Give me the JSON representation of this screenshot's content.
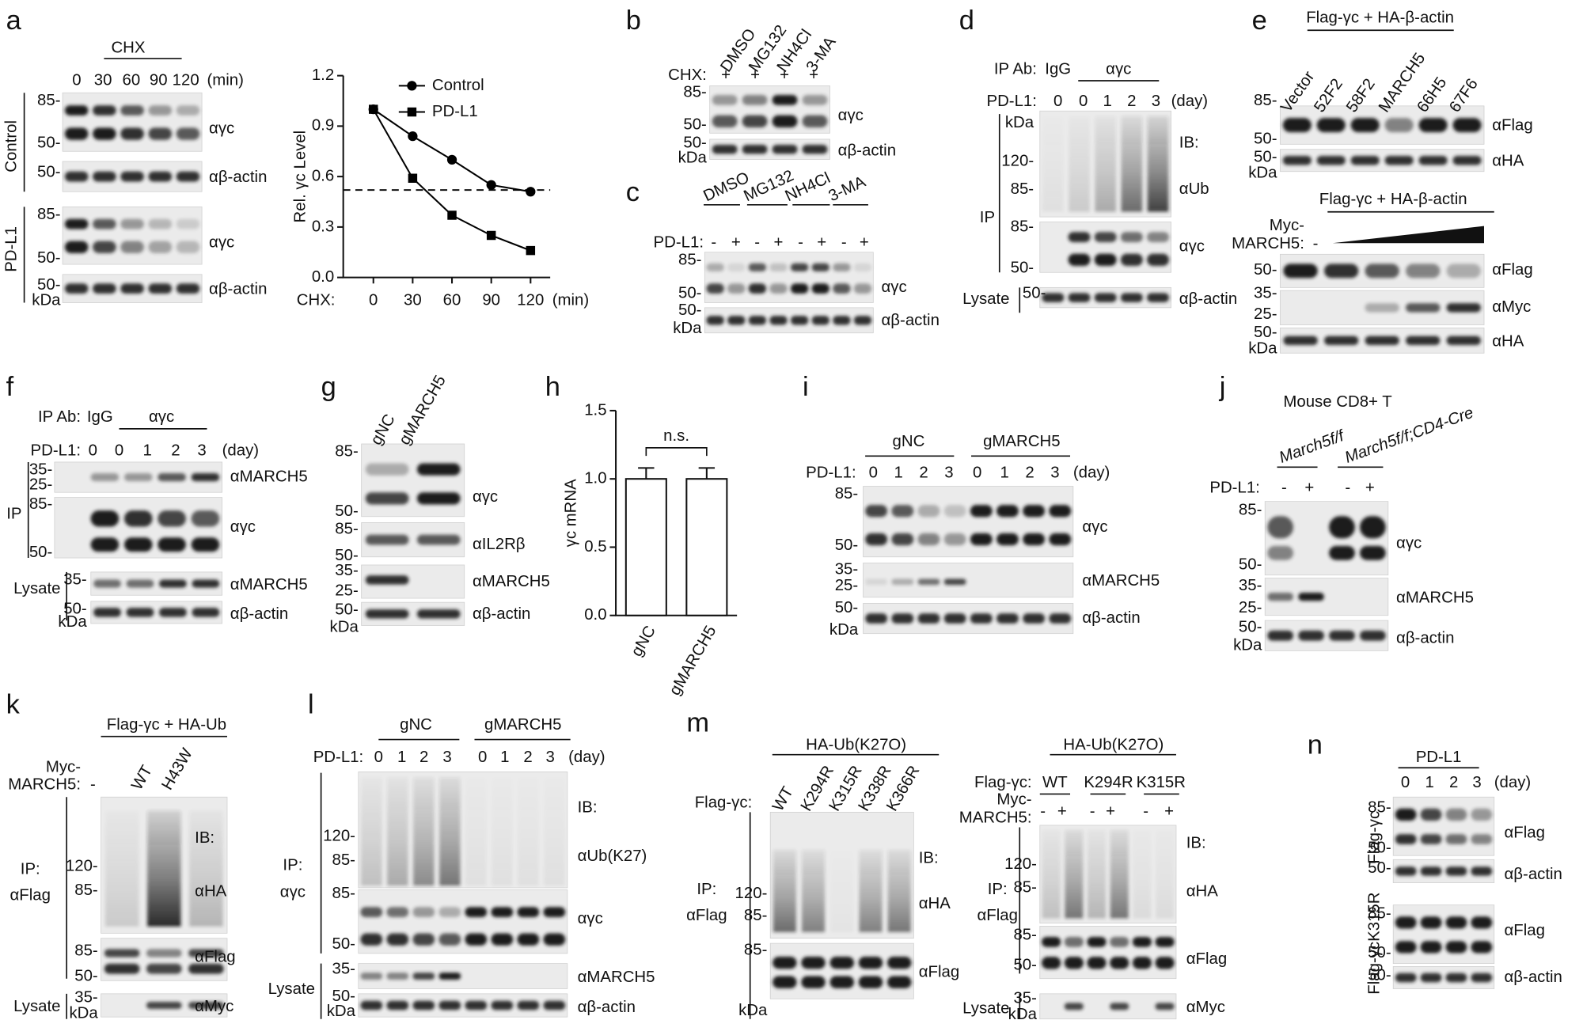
{
  "chart_data": [
    {
      "type": "line",
      "ylabel": "Rel. γc Level",
      "xlabel": "CHX:",
      "x_unit": "(min)",
      "x": [
        0,
        30,
        60,
        90,
        120
      ],
      "xlim": [
        -23,
        135
      ],
      "xticks": [
        0,
        30,
        60,
        90,
        120
      ],
      "ylim": [
        0,
        1.2
      ],
      "yticks": [
        {
          "value": 0,
          "label": "0.0"
        },
        0.3,
        0.6,
        0.9,
        1.2
      ],
      "reference_line": 0.52,
      "legend": "upper right",
      "series": [
        {
          "name": "Control",
          "color": "#000000",
          "marker": "circle",
          "values": [
            1,
            0.84,
            0.7,
            0.55,
            0.51
          ]
        },
        {
          "name": "PD-L1",
          "color": "#000000",
          "marker": "square",
          "values": [
            1,
            0.59,
            0.37,
            0.25,
            0.16
          ]
        }
      ]
    },
    {
      "type": "bar",
      "ylabel": "γc mRNA",
      "categories": [
        "gNC",
        "gMARCH5"
      ],
      "values": [
        1,
        1
      ],
      "errors": [
        0.08,
        0.08
      ],
      "annotation": "n.s.",
      "color": "#ffffff",
      "ylim": [
        0,
        1.5
      ],
      "yticks": [
        {
          "value": 0,
          "label": "0.0"
        },
        0.5,
        {
          "value": 1,
          "label": "1.0"
        },
        1.5
      ]
    }
  ],
  "panels": {
    "a": [
      "a",
      "CHX",
      "0",
      "30",
      "60",
      "90",
      "120",
      "(min)",
      "Control",
      "85-",
      "50-",
      "50-",
      "αγc",
      "αβ-actin",
      "PD-L1",
      "85-",
      "50-",
      "50-",
      "kDa",
      "αγc",
      "αβ-actin"
    ],
    "b": [
      "b",
      "DMSO",
      "MG132",
      "NH4Cl",
      "3-MA",
      "CHX:",
      "+",
      "+",
      "+",
      "+",
      "85-",
      "50-",
      "50-",
      "kDa",
      "αγc",
      "αβ-actin"
    ],
    "c": [
      "c",
      "DMSO",
      "MG132",
      "NH4Cl",
      "3-MA",
      "PD-L1:",
      "-",
      "+",
      "-",
      "+",
      "-",
      "+",
      "-",
      "+",
      "85-",
      "50-",
      "50-",
      "kDa",
      "αγc",
      "αβ-actin"
    ],
    "d": [
      "d",
      "IP Ab:",
      "IgG",
      "αγc",
      "PD-L1:",
      "0",
      "0",
      "1",
      "2",
      "3",
      "(day)",
      "kDa",
      "120-",
      "85-",
      "85-",
      "50-",
      "IP",
      "IB:",
      "αUb",
      "αγc",
      "Lysate",
      "50-",
      "αβ-actin"
    ],
    "e": [
      "e",
      "Flag-γc + HA-β-actin",
      "Vector",
      "52F2",
      "58F2",
      "MARCH5",
      "66H5",
      "67F6",
      "85-",
      "50-",
      "50-",
      "kDa",
      "αFlag",
      "αHA",
      "Flag-γc + HA-β-actin",
      "Myc-",
      "MARCH5:",
      "-",
      "50-",
      "35-",
      "25-",
      "50-",
      "kDa",
      "αFlag",
      "αMyc",
      "αHA"
    ],
    "f": [
      "f",
      "IP Ab:",
      "IgG",
      "αγc",
      "PD-L1:",
      "0",
      "0",
      "1",
      "2",
      "3",
      "(day)",
      "35-",
      "25-",
      "85-",
      "50-",
      "IP",
      "αMARCH5",
      "αγc",
      "Lysate",
      "35-",
      "50-",
      "kDa",
      "αMARCH5",
      "αβ-actin"
    ],
    "g": [
      "g",
      "gNC",
      "gMARCH5",
      "85-",
      "50-",
      "85-",
      "50-",
      "35-",
      "25-",
      "50-",
      "kDa",
      "αγc",
      "αIL2Rβ",
      "αMARCH5",
      "αβ-actin"
    ],
    "h": [
      "h"
    ],
    "i": [
      "i",
      "gNC",
      "gMARCH5",
      "PD-L1:",
      "0",
      "1",
      "2",
      "3",
      "0",
      "1",
      "2",
      "3",
      "(day)",
      "85-",
      "50-",
      "35-",
      "25-",
      "50-",
      "kDa",
      "αγc",
      "αMARCH5",
      "αβ-actin"
    ],
    "j": [
      "j",
      "Mouse CD8+ T",
      "March5f/f",
      "March5f/f;CD4-Cre",
      "PD-L1:",
      "-",
      "+",
      "-",
      "+",
      "85-",
      "50-",
      "35-",
      "25-",
      "50-",
      "kDa",
      "αγc",
      "αMARCH5",
      "αβ-actin"
    ],
    "k": [
      "k",
      "Flag-γc + HA-Ub",
      "Myc-",
      "MARCH5:",
      "-",
      "WT",
      "H43W",
      "IP:",
      "αFlag",
      "120-",
      "85-",
      "85-",
      "50-",
      "IB:",
      "αHA",
      "αFlag",
      "Lysate",
      "35-",
      "kDa",
      "αMyc"
    ],
    "l": [
      "l",
      "gNC",
      "gMARCH5",
      "PD-L1:",
      "0",
      "1",
      "2",
      "3",
      "0",
      "1",
      "2",
      "3",
      "(day)",
      "IP:",
      "αγc",
      "120-",
      "85-",
      "85-",
      "50-",
      "IB:",
      "αUb(K27)",
      "αγc",
      "Lysate",
      "35-",
      "50-",
      "kDa",
      "αMARCH5",
      "αβ-actin"
    ],
    "m": [
      "m",
      "HA-Ub(K27O)",
      "Flag-γc:",
      "WT",
      "K294R",
      "K315R",
      "K338R",
      "K366R",
      "IP:",
      "αFlag",
      "120-",
      "85-",
      "85-",
      "kDa",
      "IB:",
      "αHA",
      "αFlag",
      "HA-Ub(K27O)",
      "Flag-γc:",
      "WT",
      "K294R",
      "K315R",
      "Myc-",
      "MARCH5:",
      "-",
      "+",
      "-",
      "+",
      "-",
      "+",
      "IP:",
      "αFlag",
      "120-",
      "85-",
      "85-",
      "50-",
      "IB:",
      "αHA",
      "αFlag",
      "Lysate",
      "35-",
      "kDa",
      "αMyc"
    ],
    "n": [
      "n",
      "PD-L1",
      "0",
      "1",
      "2",
      "3",
      "(day)",
      "Flag-γc",
      "Flag-γcK315R",
      "85-",
      "50-",
      "50-",
      "85-",
      "50-",
      "50-",
      "αFlag",
      "αβ-actin",
      "αFlag",
      "αβ-actin"
    ]
  }
}
